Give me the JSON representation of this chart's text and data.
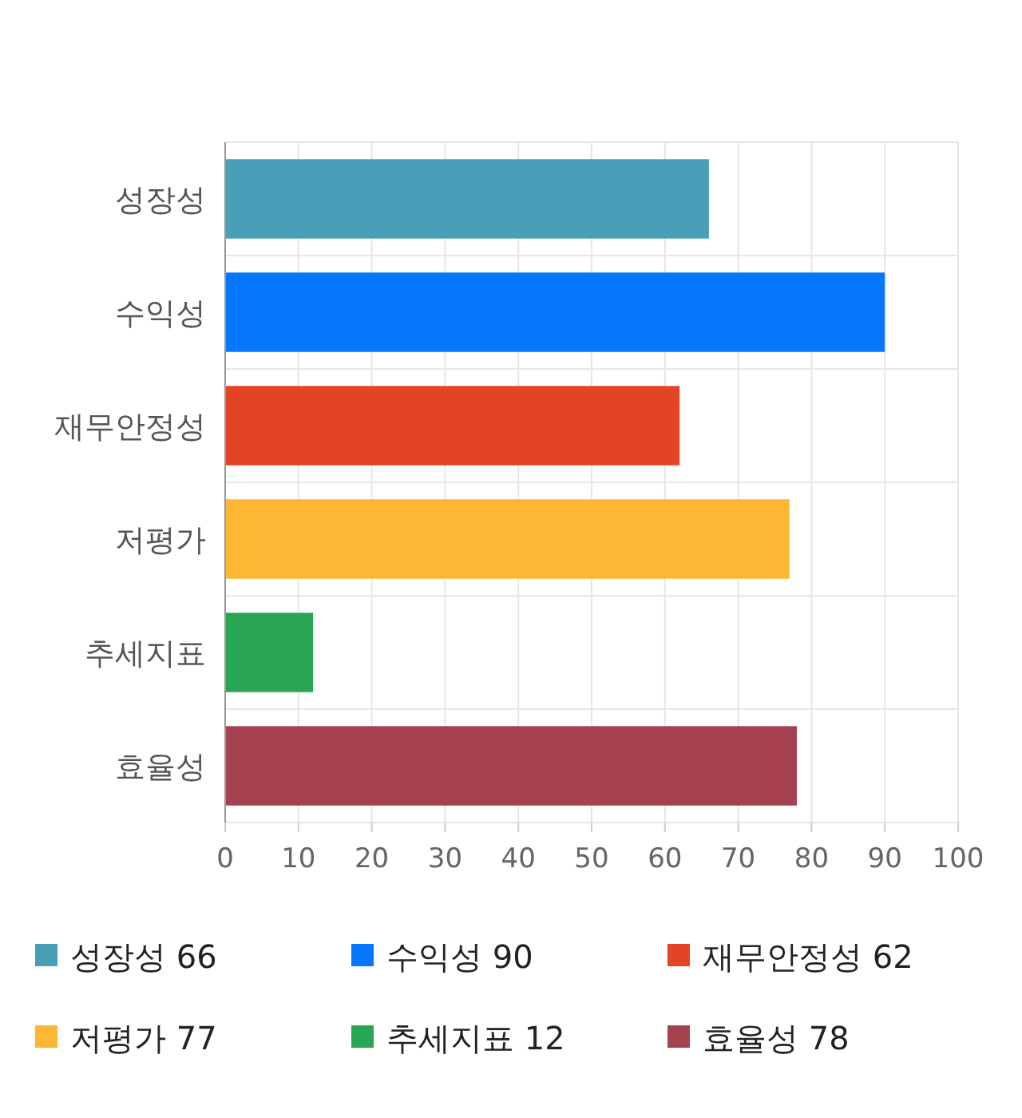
{
  "chart_data": {
    "type": "bar",
    "orientation": "horizontal",
    "categories": [
      "성장성",
      "수익성",
      "재무안정성",
      "저평가",
      "추세지표",
      "효율성"
    ],
    "series": [
      {
        "name": "성장성 66",
        "color": "#4a9fb8",
        "values": [
          66,
          null,
          null,
          null,
          null,
          null
        ]
      },
      {
        "name": "수익성 90",
        "color": "#0477fd",
        "values": [
          null,
          90,
          null,
          null,
          null,
          null
        ]
      },
      {
        "name": "재무안정성 62",
        "color": "#e34423",
        "values": [
          null,
          null,
          62,
          null,
          null,
          null
        ]
      },
      {
        "name": "저평가 77",
        "color": "#fdb733",
        "values": [
          null,
          null,
          null,
          77,
          null,
          null
        ]
      },
      {
        "name": "추세지표 12",
        "color": "#29a653",
        "values": [
          null,
          null,
          null,
          null,
          12,
          null
        ]
      },
      {
        "name": "효율성 78",
        "color": "#a6414f",
        "values": [
          null,
          null,
          null,
          null,
          null,
          78
        ]
      }
    ],
    "xlim": [
      0,
      100
    ],
    "xticks": [
      0,
      10,
      20,
      30,
      40,
      50,
      60,
      70,
      80,
      90,
      100
    ],
    "grid": true,
    "legend": "bottom"
  }
}
